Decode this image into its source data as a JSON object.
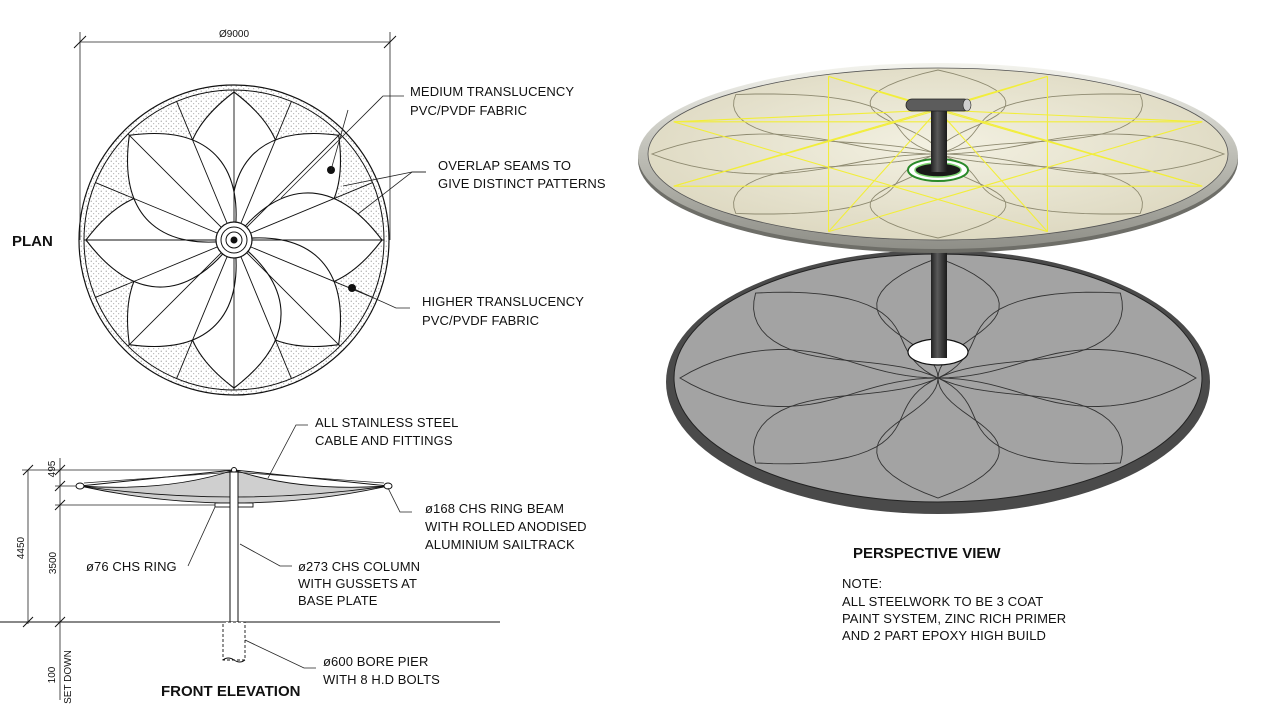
{
  "plan": {
    "title": "PLAN",
    "diameter_dim": "Ø9000",
    "notes": {
      "medium": [
        "MEDIUM TRANSLUCENCY",
        "PVC/PVDF FABRIC"
      ],
      "seams": [
        "OVERLAP SEAMS TO",
        "GIVE DISTINCT PATTERNS"
      ],
      "higher": [
        "HIGHER TRANSLUCENCY",
        "PVC/PVDF FABRIC"
      ]
    }
  },
  "elevation": {
    "title": "FRONT ELEVATION",
    "dims": {
      "top": "495",
      "overall": "4450",
      "column": "3500",
      "below": "100",
      "set_down": "SET DOWN"
    },
    "notes": {
      "cable": [
        "ALL STAINLESS STEEL",
        "CABLE AND FITTINGS"
      ],
      "ring_beam": [
        "ø168 CHS RING BEAM",
        "WITH ROLLED ANODISED",
        "ALUMINIUM SAILTRACK"
      ],
      "ring": [
        "ø76 CHS RING"
      ],
      "column": [
        "ø273 CHS COLUMN",
        "WITH GUSSETS AT",
        "BASE PLATE"
      ],
      "pier": [
        "ø600 BORE PIER",
        "WITH 8 H.D BOLTS"
      ]
    }
  },
  "perspective": {
    "title": "PERSPECTIVE VIEW",
    "note_heading": "NOTE:",
    "note_lines": [
      "ALL STEELWORK TO BE 3 COAT",
      "PAINT SYSTEM, ZINC RICH PRIMER",
      "AND 2 PART EPOXY HIGH BUILD"
    ]
  },
  "colors": {
    "line": "#111111",
    "canopy_fill": "#e6e2cf",
    "shadow_fill": "#9a9a9a",
    "cable_highlight": "#f2ee3a",
    "ring_metal": "#c9c9c3"
  }
}
